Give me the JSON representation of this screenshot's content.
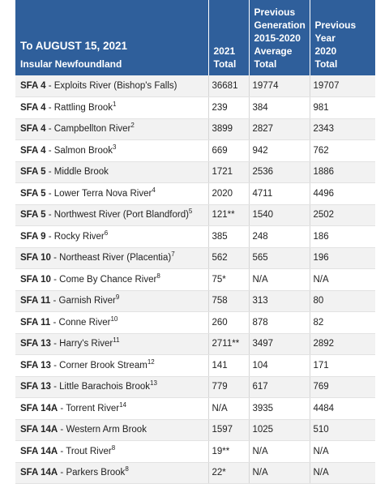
{
  "header": {
    "title": "To AUGUST 15, 2021",
    "subtitle": "Insular Newfoundland",
    "col_2021": "2021\nTotal",
    "col_prev_gen": "Previous\nGeneration\n2015-2020\nAverage\nTotal",
    "col_prev_year": "Previous\nYear\n2020\nTotal"
  },
  "rows": [
    {
      "sfa": "SFA 4",
      "river": " - Exploits River (Bishop's Falls)",
      "note": "",
      "total_2021": "36681",
      "prev_gen_avg": "19774",
      "prev_year": "19707"
    },
    {
      "sfa": "SFA 4",
      "river": " - Rattling Brook",
      "note": "1",
      "total_2021": "239",
      "prev_gen_avg": "384",
      "prev_year": "981"
    },
    {
      "sfa": "SFA 4",
      "river": " - Campbellton River",
      "note": "2",
      "total_2021": "3899",
      "prev_gen_avg": "2827",
      "prev_year": "2343"
    },
    {
      "sfa": "SFA 4",
      "river": " - Salmon Brook",
      "note": "3",
      "total_2021": "669",
      "prev_gen_avg": "942",
      "prev_year": "762"
    },
    {
      "sfa": "SFA 5",
      "river": " - Middle Brook",
      "note": "",
      "total_2021": "1721",
      "prev_gen_avg": "2536",
      "prev_year": "1886"
    },
    {
      "sfa": "SFA 5",
      "river": " - Lower Terra Nova River",
      "note": "4",
      "total_2021": "2020",
      "prev_gen_avg": "4711",
      "prev_year": "4496"
    },
    {
      "sfa": "SFA 5",
      "river": " - Northwest River (Port Blandford)",
      "note": "5",
      "total_2021": "121**",
      "prev_gen_avg": "1540",
      "prev_year": "2502"
    },
    {
      "sfa": "SFA 9",
      "river": " - Rocky River",
      "note": "6",
      "total_2021": "385",
      "prev_gen_avg": "248",
      "prev_year": "186"
    },
    {
      "sfa": "SFA 10",
      "river": " - Northeast River (Placentia)",
      "note": "7",
      "total_2021": "562",
      "prev_gen_avg": "565",
      "prev_year": "196"
    },
    {
      "sfa": "SFA 10",
      "river": " - Come By Chance River",
      "note": "8",
      "total_2021": "75*",
      "prev_gen_avg": "N/A",
      "prev_year": "N/A"
    },
    {
      "sfa": "SFA 11",
      "river": " - Garnish River",
      "note": "9",
      "total_2021": "758",
      "prev_gen_avg": "313",
      "prev_year": "80"
    },
    {
      "sfa": "SFA 11",
      "river": " - Conne River",
      "note": "10",
      "total_2021": "260",
      "prev_gen_avg": "878",
      "prev_year": "82"
    },
    {
      "sfa": "SFA 13",
      "river": " - Harry's River",
      "note": "11",
      "total_2021": "2711**",
      "prev_gen_avg": "3497",
      "prev_year": "2892"
    },
    {
      "sfa": "SFA 13",
      "river": " - Corner Brook Stream",
      "note": "12",
      "total_2021": "141",
      "prev_gen_avg": "104",
      "prev_year": "171"
    },
    {
      "sfa": "SFA 13",
      "river": " - Little Barachois Brook",
      "note": "13",
      "total_2021": "779",
      "prev_gen_avg": "617",
      "prev_year": "769"
    },
    {
      "sfa": "SFA 14A",
      "river": " - Torrent River",
      "note": "14",
      "total_2021": "N/A",
      "prev_gen_avg": "3935",
      "prev_year": "4484"
    },
    {
      "sfa": "SFA 14A",
      "river": " - Western Arm Brook",
      "note": "",
      "total_2021": "1597",
      "prev_gen_avg": "1025",
      "prev_year": "510"
    },
    {
      "sfa": "SFA 14A",
      "river": " - Trout River",
      "note": "8",
      "total_2021": "19**",
      "prev_gen_avg": "N/A",
      "prev_year": "N/A"
    },
    {
      "sfa": "SFA 14A",
      "river": " - Parkers Brook",
      "note": "8",
      "total_2021": "22*",
      "prev_gen_avg": "N/A",
      "prev_year": "N/A"
    }
  ]
}
